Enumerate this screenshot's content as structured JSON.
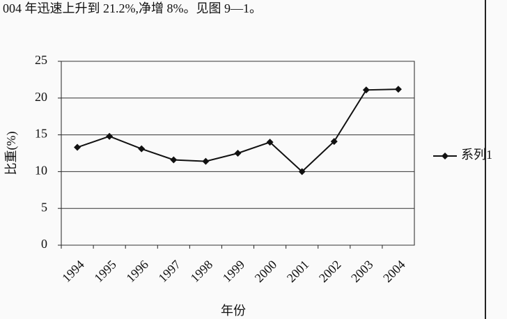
{
  "chart_data": {
    "type": "line",
    "text_above": "004 年迅速上升到 21.2%,净增 8%。见图 9—1。",
    "xlabel": "年份",
    "ylabel": "比重(%)",
    "categories": [
      "1994",
      "1995",
      "1996",
      "1997",
      "1998",
      "1999",
      "2000",
      "2001",
      "2002",
      "2003",
      "2004"
    ],
    "series": [
      {
        "name": "系列1",
        "color": "#111111",
        "values": [
          13.3,
          14.8,
          13.1,
          11.6,
          11.4,
          12.5,
          14.0,
          10.0,
          14.1,
          21.1,
          21.2
        ]
      }
    ],
    "ylim": [
      0,
      25
    ],
    "yticks": [
      0,
      5,
      10,
      15,
      20,
      25
    ],
    "grid": true,
    "legend": "right"
  }
}
